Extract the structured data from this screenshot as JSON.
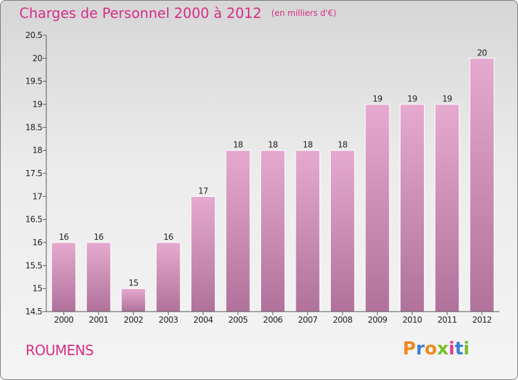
{
  "header": {
    "title": "Charges de Personnel 2000 à 2012",
    "subtitle": "(en milliers d'€)"
  },
  "footer": {
    "location": "ROUMENS",
    "brand": "Proxiti"
  },
  "colors": {
    "title": "#d62e86",
    "bar_top": "#e6a9cf",
    "bar_bottom": "#b0729a",
    "logo_letters": [
      "#f08a1d",
      "#3a7fd0",
      "#f08a1d",
      "#7cbd2a",
      "#e83a8a",
      "#3a7fd0",
      "#7cbd2a"
    ]
  },
  "chart_data": {
    "type": "bar",
    "title": "Charges de Personnel 2000 à 2012",
    "subtitle": "(en milliers d'€)",
    "categories": [
      "2000",
      "2001",
      "2002",
      "2003",
      "2004",
      "2005",
      "2006",
      "2007",
      "2008",
      "2009",
      "2010",
      "2011",
      "2012"
    ],
    "values": [
      16,
      16,
      15,
      16,
      17,
      18,
      18,
      18,
      18,
      19,
      19,
      19,
      20
    ],
    "ylim": [
      14.5,
      20.5
    ],
    "yticks": [
      "14.5",
      "15",
      "15.5",
      "16",
      "16.5",
      "17",
      "17.5",
      "18",
      "18.5",
      "19",
      "19.5",
      "20",
      "20.5"
    ],
    "grid": false,
    "legend": "none"
  }
}
